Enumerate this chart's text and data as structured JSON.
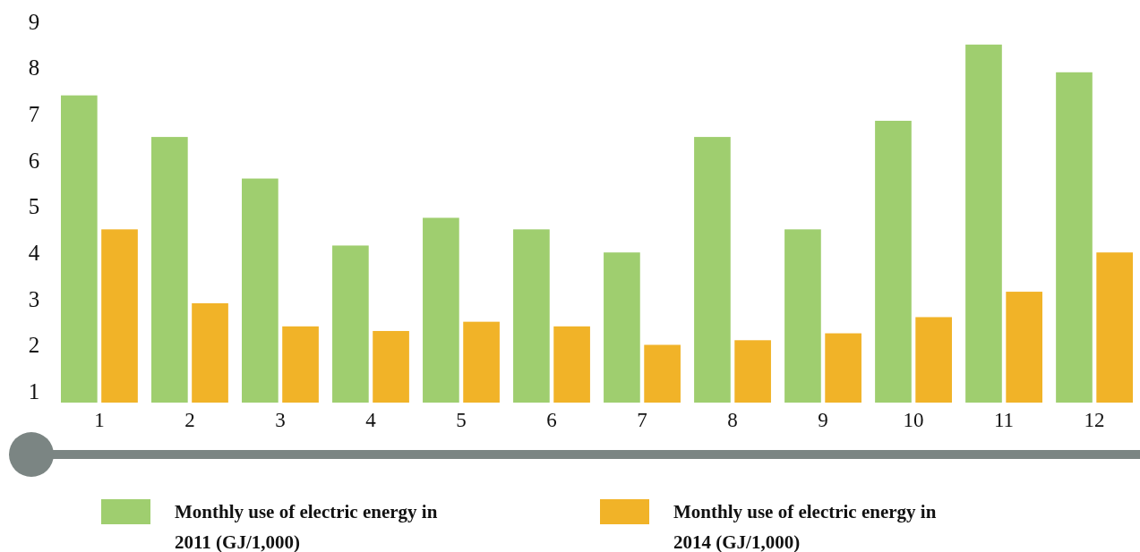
{
  "chart_data": {
    "type": "bar",
    "categories": [
      "1",
      "2",
      "3",
      "4",
      "5",
      "6",
      "7",
      "8",
      "9",
      "10",
      "11",
      "12"
    ],
    "series": [
      {
        "name": "Monthly use of electric energy in 2011 (GJ/1,000)",
        "color": "#9fce6f",
        "values": [
          7.4,
          6.5,
          5.6,
          4.15,
          4.75,
          4.5,
          4.0,
          6.5,
          4.5,
          6.85,
          8.5,
          7.9
        ]
      },
      {
        "name": "Monthly use of electric energy in 2014 (GJ/1,000)",
        "color": "#f1b328",
        "values": [
          4.5,
          2.9,
          2.4,
          2.3,
          2.5,
          2.4,
          2.0,
          2.1,
          2.25,
          2.6,
          3.15,
          4.0
        ]
      }
    ],
    "ylim": [
      0.75,
      9
    ],
    "yticks": [
      1,
      2,
      3,
      4,
      5,
      6,
      7,
      8,
      9
    ],
    "grid": false,
    "legend": "bottom"
  }
}
